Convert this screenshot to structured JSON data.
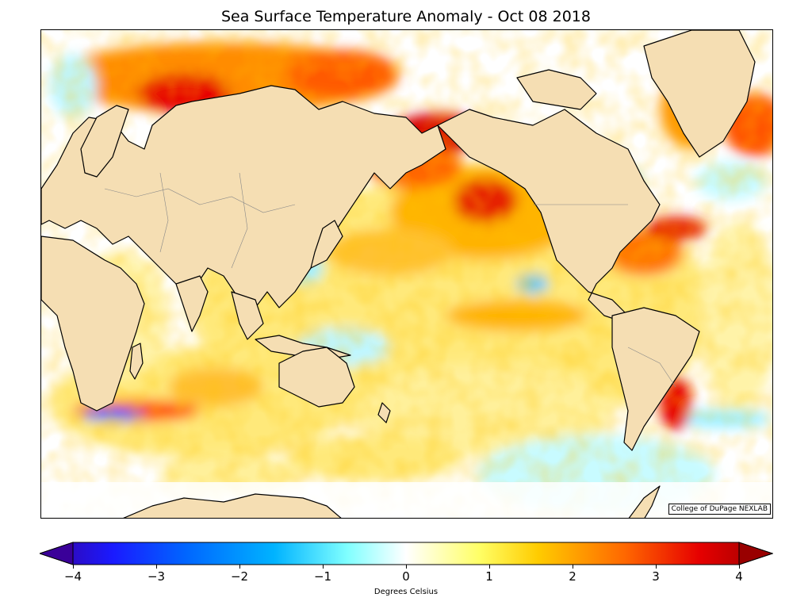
{
  "title": "Sea Surface Temperature Anomaly - Oct 08 2018",
  "credit": "College of DuPage NEXLAB",
  "colorbar": {
    "label": "Degrees Celsius",
    "min": -4,
    "max": 4,
    "ticks": [
      "−4",
      "−3",
      "−2",
      "−1",
      "0",
      "1",
      "2",
      "3",
      "4"
    ],
    "tick_values": [
      -4,
      -3,
      -2,
      -1,
      0,
      1,
      2,
      3,
      4
    ],
    "extend": "both",
    "colors": [
      "#3a0099",
      "#1a1aff",
      "#0066ff",
      "#00b3ff",
      "#80ffff",
      "#ffffff",
      "#ffff66",
      "#ffcc00",
      "#ff6600",
      "#e60000",
      "#990000"
    ]
  },
  "map": {
    "land_color": "#f5deb3",
    "coastline_color": "#000000"
  }
}
